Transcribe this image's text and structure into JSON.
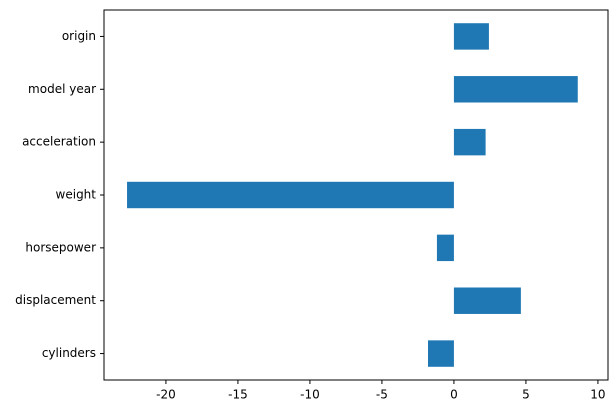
{
  "chart_data": {
    "type": "barh",
    "categories": [
      "cylinders",
      "displacement",
      "horsepower",
      "weight",
      "acceleration",
      "model year",
      "origin"
    ],
    "values": [
      -1.8,
      4.65,
      -1.18,
      -22.7,
      2.2,
      8.6,
      2.43
    ],
    "color": "#1f77b4",
    "xlim": [
      -24.3,
      10.7
    ],
    "xticks": [
      -20,
      -15,
      -10,
      -5,
      0,
      5,
      10
    ]
  }
}
